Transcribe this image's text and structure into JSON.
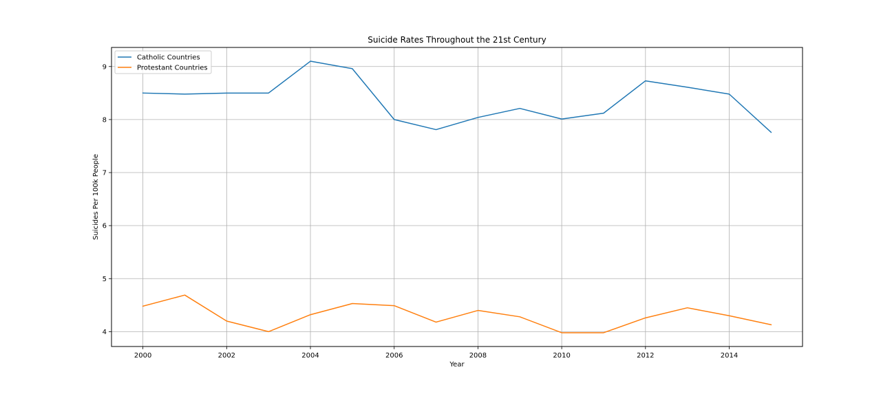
{
  "chart_data": {
    "type": "line",
    "title": "Suicide Rates Throughout the 21st Century",
    "xlabel": "Year",
    "ylabel": "Suicides Per 100k People",
    "x": [
      2000,
      2001,
      2002,
      2003,
      2004,
      2005,
      2006,
      2007,
      2008,
      2009,
      2010,
      2011,
      2012,
      2013,
      2014,
      2015
    ],
    "xlim": [
      1999.25,
      2015.75
    ],
    "ylim": [
      3.72,
      9.36
    ],
    "xticks": [
      2000,
      2002,
      2004,
      2006,
      2008,
      2010,
      2012,
      2014
    ],
    "yticks": [
      4,
      5,
      6,
      7,
      8,
      9
    ],
    "grid": true,
    "legend_position": "top-left",
    "series": [
      {
        "name": "Catholic Countries",
        "color": "#1f77b4",
        "values": [
          8.5,
          8.48,
          8.5,
          8.5,
          9.1,
          8.96,
          8.0,
          7.81,
          8.04,
          8.21,
          8.01,
          8.12,
          8.73,
          8.61,
          8.48,
          7.76
        ]
      },
      {
        "name": "Protestant Countries",
        "color": "#ff7f0e",
        "values": [
          4.48,
          4.69,
          4.2,
          4.0,
          4.32,
          4.53,
          4.49,
          4.18,
          4.4,
          4.28,
          3.98,
          3.98,
          4.26,
          4.45,
          4.3,
          4.13
        ]
      }
    ]
  }
}
